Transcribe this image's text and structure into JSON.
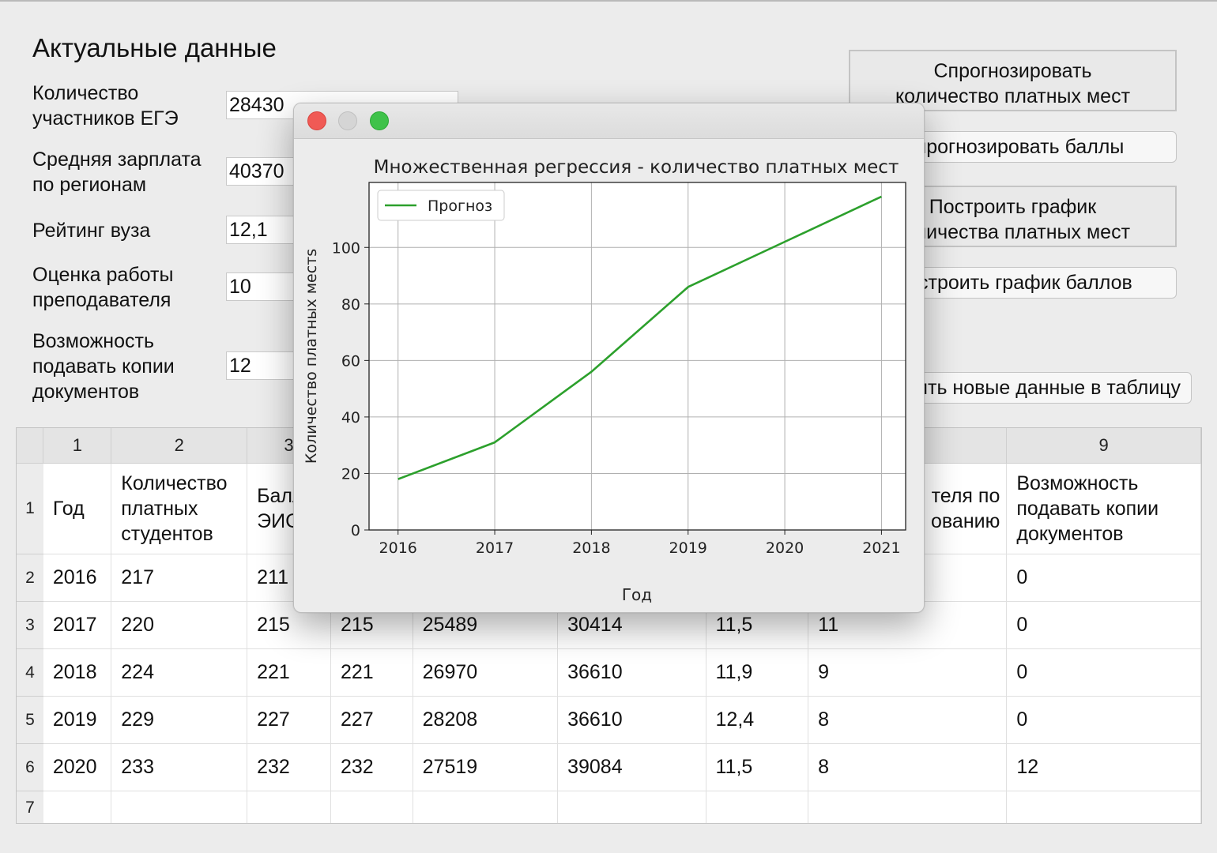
{
  "section_title": "Актуальные данные",
  "form": {
    "fields": [
      {
        "label": "Количество\nучастников ЕГЭ",
        "value": "28430"
      },
      {
        "label": "Средняя зарплата\nпо регионам",
        "value": "40370"
      },
      {
        "label": "Рейтинг вуза",
        "value": "12,1"
      },
      {
        "label": "Оценка работы\nпреподавателя",
        "value": "10"
      },
      {
        "label": "Возможность\nподавать копии\nдокументов",
        "value": "12"
      }
    ]
  },
  "buttons": {
    "predict_paid": "Спрогнозировать\nколичество платных мест",
    "predict_scores": "Спрогнозировать баллы",
    "plot_paid": "Построить график\nколичества платных мест",
    "plot_scores": "Построить график баллов",
    "add_data": "Добавить новые данные в таблицу"
  },
  "table": {
    "column_numbers": [
      "1",
      "2",
      "3",
      "",
      "",
      "",
      "",
      "",
      "9"
    ],
    "row_numbers": [
      "1",
      "2",
      "3",
      "4",
      "5",
      "6",
      "7"
    ],
    "header_cells": [
      "Год",
      "Количество\nплатных\nстудентов",
      "Балл\nЭИС",
      "",
      "",
      "",
      "",
      "теля по\nованию",
      "Возможность\nподавать копии\nдокументов"
    ],
    "rows": [
      [
        "2016",
        "217",
        "211",
        "",
        "",
        "",
        "",
        "",
        "0"
      ],
      [
        "2017",
        "220",
        "215",
        "215",
        "25489",
        "30414",
        "11,5",
        "11",
        "0"
      ],
      [
        "2018",
        "224",
        "221",
        "221",
        "26970",
        "36610",
        "11,9",
        "9",
        "0"
      ],
      [
        "2019",
        "229",
        "227",
        "227",
        "28208",
        "36610",
        "12,4",
        "8",
        "0"
      ],
      [
        "2020",
        "233",
        "232",
        "232",
        "27519",
        "39084",
        "11,5",
        "8",
        "12"
      ]
    ]
  },
  "plot_window": {
    "chart_data": {
      "type": "line",
      "title": "Множественная регрессия - количество платных мест",
      "xlabel": "Год",
      "ylabel": "Количество платных местs",
      "x": [
        2016,
        2017,
        2018,
        2019,
        2020,
        2021
      ],
      "series": [
        {
          "name": "Прогноз",
          "color": "#2ca02c",
          "values": [
            18,
            31,
            56,
            86,
            102,
            118
          ]
        }
      ],
      "xlim": [
        2015.7,
        2021.25
      ],
      "ylim": [
        0,
        123
      ],
      "xticks": [
        "2016",
        "2017",
        "2018",
        "2019",
        "2020",
        "2021"
      ],
      "yticks": [
        "0",
        "20",
        "40",
        "60",
        "80",
        "100"
      ],
      "grid": true,
      "legend": "top-left"
    }
  }
}
